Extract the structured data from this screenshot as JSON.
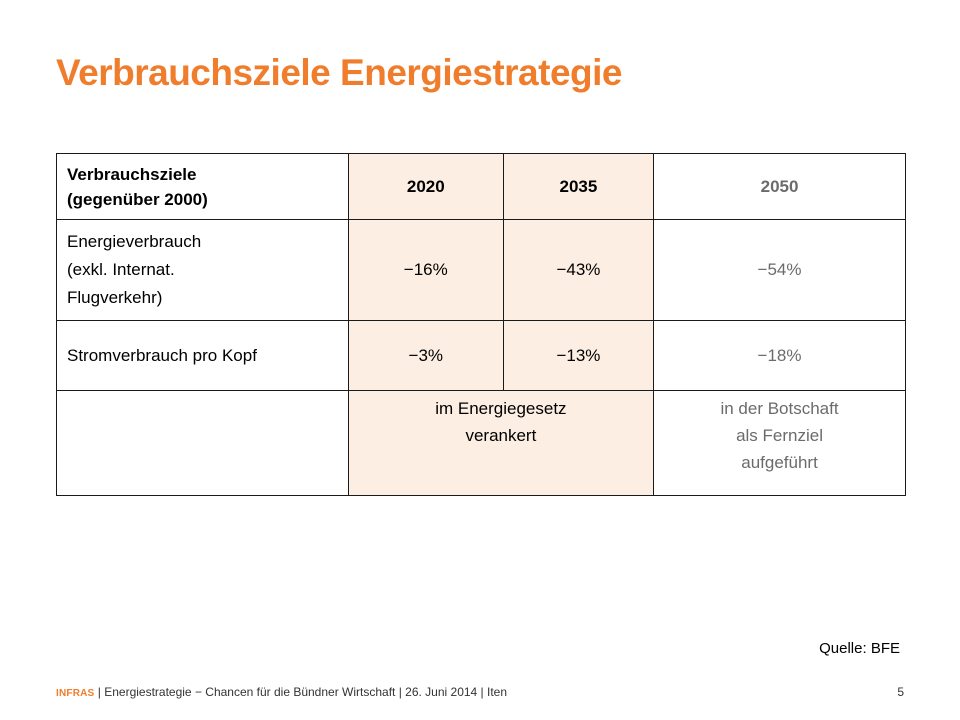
{
  "title": "Verbrauchsziele Energiestrategie",
  "table": {
    "header": {
      "label_line1": "Verbrauchsziele",
      "label_line2": "(gegenüber 2000)",
      "years": [
        "2020",
        "2035",
        "2050"
      ]
    },
    "rows": [
      {
        "label_lines": [
          "Energieverbrauch",
          "(exkl. Internat.",
          "Flugverkehr)"
        ],
        "values": [
          "−16%",
          "−43%",
          "−54%"
        ]
      },
      {
        "label_lines": [
          "Stromverbrauch pro Kopf"
        ],
        "values": [
          "−3%",
          "−13%",
          "−18%"
        ]
      }
    ],
    "notes": {
      "law_lines": [
        "im Energiegesetz",
        "verankert"
      ],
      "message_lines": [
        "in der Botschaft",
        "als Fernziel",
        "aufgeführt"
      ]
    }
  },
  "source": "Quelle: BFE",
  "footer": {
    "logo": "INFRAS",
    "text": "| Energiestrategie − Chancen für die Bündner Wirtschaft | 26. Juni 2014 | Iten",
    "page": "5"
  },
  "colors": {
    "accent": "#ef7d2c",
    "highlight": "#fdeee3",
    "muted": "#6b6b6b"
  }
}
